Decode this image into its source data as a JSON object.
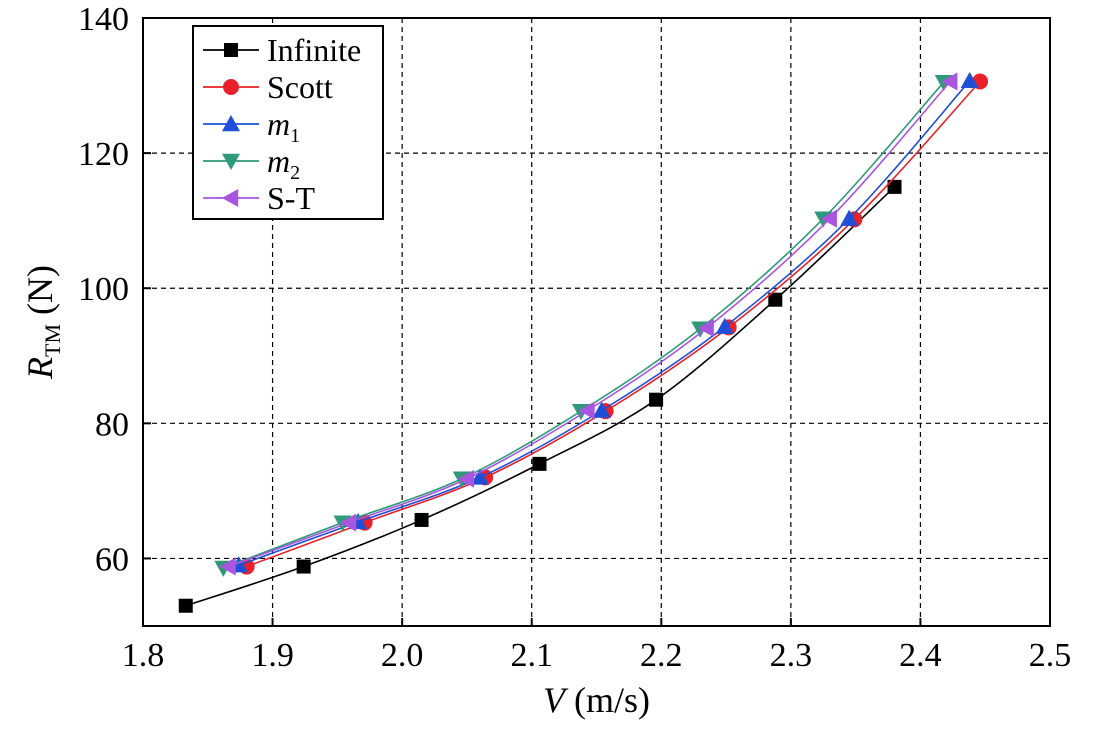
{
  "chart_data": {
    "type": "line",
    "xlabel": {
      "italic": "V",
      "rest": " (m/s)"
    },
    "ylabel": {
      "italic": "R",
      "sub": "TM",
      "rest": " (N)"
    },
    "xlim": [
      1.8,
      2.5
    ],
    "ylim": [
      50,
      140
    ],
    "xticks": [
      "1.8",
      "1.9",
      "2.0",
      "2.1",
      "2.2",
      "2.3",
      "2.4",
      "2.5"
    ],
    "yticks": [
      "60",
      "80",
      "100",
      "120",
      "140"
    ],
    "xtick_values": [
      1.8,
      1.9,
      2.0,
      2.1,
      2.2,
      2.3,
      2.4,
      2.5
    ],
    "ytick_values": [
      60,
      80,
      100,
      120,
      140
    ],
    "grid": true,
    "legend_position": "top-left",
    "series": [
      {
        "name": "Infinite",
        "legend_html": {
          "main": "Infinite",
          "sub": "",
          "italic": false
        },
        "color": "#000000",
        "marker": "square",
        "x": [
          1.833,
          1.924,
          2.015,
          2.106,
          2.196,
          2.288,
          2.38
        ],
        "y": [
          53.0,
          58.8,
          65.7,
          74.0,
          83.5,
          98.3,
          115.0
        ]
      },
      {
        "name": "Scott",
        "legend_html": {
          "main": "Scott",
          "sub": "",
          "italic": false
        },
        "color": "#e8202a",
        "marker": "circle",
        "x": [
          1.88,
          1.971,
          2.064,
          2.157,
          2.252,
          2.349,
          2.446
        ],
        "y": [
          58.8,
          65.3,
          72.0,
          81.8,
          94.2,
          110.2,
          130.6
        ]
      },
      {
        "name": "m1",
        "legend_html": {
          "main": "m",
          "sub": "1",
          "italic": true
        },
        "color": "#1f4fd6",
        "marker": "triangle-up",
        "x": [
          1.874,
          1.966,
          2.06,
          2.154,
          2.249,
          2.345,
          2.438
        ],
        "y": [
          59.0,
          65.4,
          72.0,
          81.9,
          94.3,
          110.3,
          130.7
        ]
      },
      {
        "name": "m2",
        "legend_html": {
          "main": "m",
          "sub": "2",
          "italic": true
        },
        "color": "#2e9a7a",
        "marker": "triangle-down",
        "x": [
          1.862,
          1.954,
          2.046,
          2.138,
          2.23,
          2.325,
          2.418
        ],
        "y": [
          58.6,
          65.3,
          71.8,
          81.8,
          94.0,
          110.3,
          130.5
        ]
      },
      {
        "name": "S-T",
        "legend_html": {
          "main": "S-T",
          "sub": "",
          "italic": false
        },
        "color": "#a855e0",
        "marker": "triangle-left",
        "x": [
          1.866,
          1.959,
          2.05,
          2.143,
          2.235,
          2.33,
          2.423
        ],
        "y": [
          58.8,
          65.3,
          71.8,
          81.9,
          94.1,
          110.3,
          130.6
        ]
      }
    ]
  }
}
